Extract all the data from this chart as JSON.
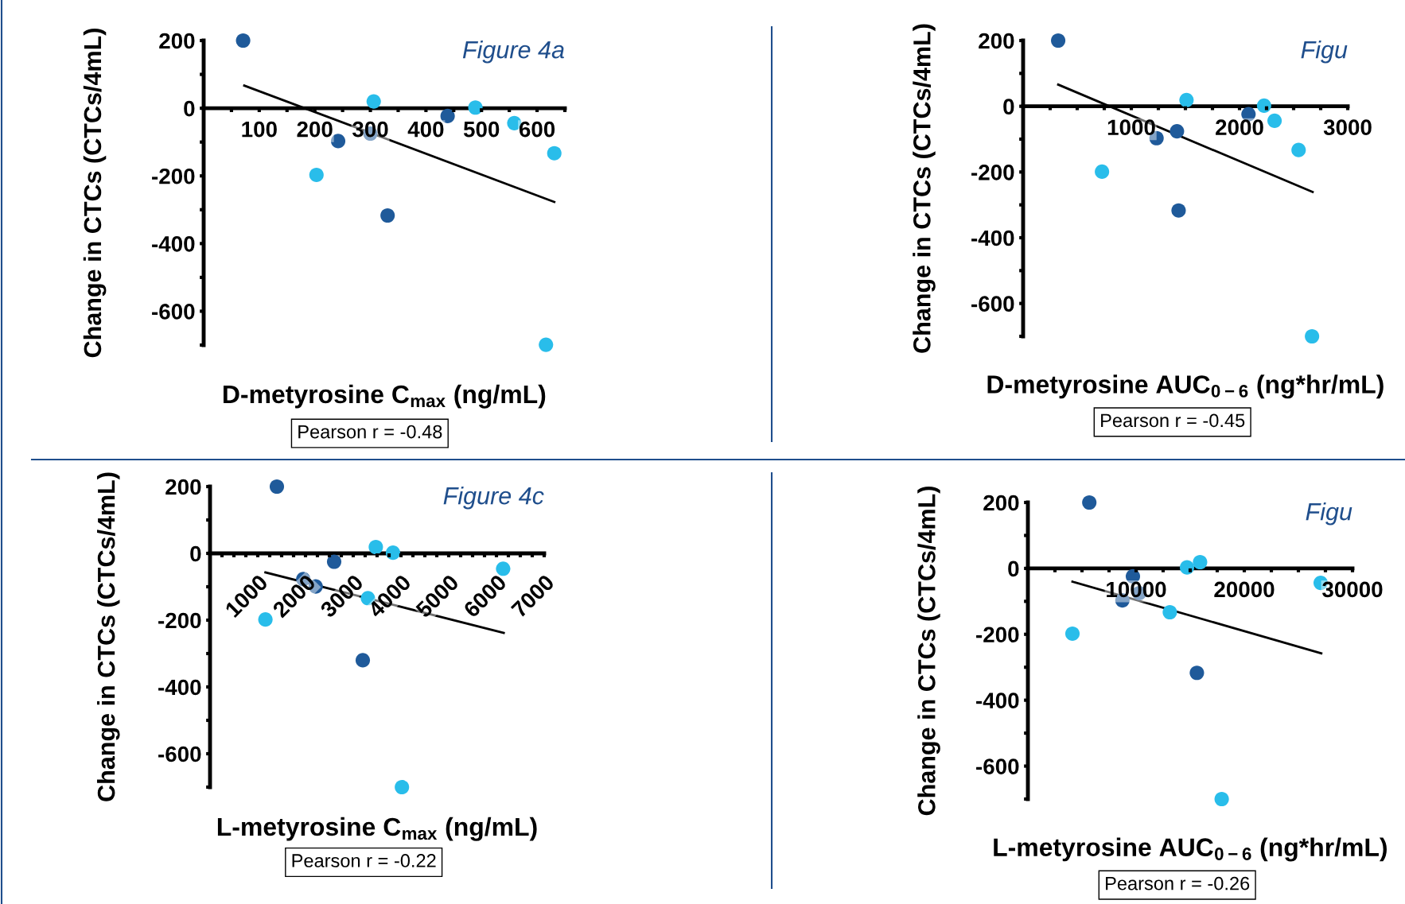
{
  "chart_data": [
    {
      "type": "scatter",
      "title": "Figure 4a",
      "xlabel": "D-metyrosine C$_{max}$ (ng/mL)",
      "ylabel": "Change in CTCs (CTCs/4mL)",
      "annotations": [
        "Pearson r = -0.48"
      ],
      "marker": "circle",
      "grid": false,
      "xlim": [
        0,
        650
      ],
      "ylim": [
        -700,
        200
      ],
      "xticks": [
        {
          "value": 50,
          "label": null
        },
        100,
        {
          "value": 150,
          "label": null
        },
        200,
        {
          "value": 250,
          "label": null
        },
        300,
        {
          "value": 350,
          "label": null
        },
        400,
        {
          "value": 450,
          "label": null
        },
        500,
        {
          "value": 550,
          "label": null
        },
        600,
        {
          "value": 650,
          "label": null
        }
      ],
      "yticks": [
        {
          "value": -700,
          "label": null
        },
        -600,
        {
          "value": -500,
          "label": null
        },
        -400,
        {
          "value": -300,
          "label": null
        },
        -200,
        {
          "value": -100,
          "label": null
        },
        0,
        {
          "value": 100,
          "label": null
        },
        200
      ],
      "series": [
        {
          "color": "#1f5a9a",
          "x": [
            71,
            242,
            300,
            331,
            439
          ],
          "values": [
            200,
            -97,
            -75,
            -317,
            -23
          ]
        },
        {
          "color": "#29bdea",
          "x": [
            203,
            306,
            489,
            559,
            631,
            616
          ],
          "values": [
            -197,
            20,
            2,
            -44,
            -133,
            -699
          ]
        },
        {
          "type": "line",
          "color": "#000000",
          "marker": "none",
          "x": [
            73,
            631
          ],
          "values": [
            67,
            -277
          ]
        }
      ]
    },
    {
      "type": "scatter",
      "title": "Figu",
      "xlabel": "D-metyrosine AUC$_{0−6}$ (ng*hr/mL)",
      "ylabel": "Change in CTCs (CTCs/4mL)",
      "annotations": [
        "Pearson r = -0.45"
      ],
      "marker": "circle",
      "grid": false,
      "xlim": [
        0,
        3000
      ],
      "ylim": [
        -700,
        200
      ],
      "xticks": [
        {
          "value": 250,
          "label": null
        },
        {
          "value": 500,
          "label": null
        },
        {
          "value": 750,
          "label": null
        },
        1000,
        {
          "value": 1250,
          "label": null
        },
        {
          "value": 1500,
          "label": null
        },
        {
          "value": 1750,
          "label": null
        },
        2000,
        {
          "value": 2250,
          "label": null
        },
        {
          "value": 2500,
          "label": null
        },
        {
          "value": 2750,
          "label": null
        },
        3000
      ],
      "yticks": [
        {
          "value": -700,
          "label": null
        },
        -600,
        {
          "value": -500,
          "label": null
        },
        -400,
        {
          "value": -300,
          "label": null
        },
        -200,
        {
          "value": -100,
          "label": null
        },
        0,
        {
          "value": 100,
          "label": null
        },
        200
      ],
      "series": [
        {
          "color": "#1f5a9a",
          "x": [
            324,
            1233,
            1422,
            1437,
            2083
          ],
          "values": [
            200,
            -97,
            -76,
            -317,
            -24
          ]
        },
        {
          "color": "#29bdea",
          "x": [
            729,
            1510,
            2227,
            2324,
            2546,
            2670
          ],
          "values": [
            -199,
            19,
            2,
            -44,
            -133,
            -700
          ]
        },
        {
          "type": "line",
          "color": "#000000",
          "marker": "none",
          "x": [
            324,
            2676
          ],
          "values": [
            66,
            -261
          ]
        }
      ]
    },
    {
      "type": "scatter",
      "title": "Figure 4c",
      "xlabel": "L-metyrosine C$_{max}$ (ng/mL)",
      "ylabel": "Change in CTCs (CTCs/4mL)",
      "annotations": [
        "Pearson r = -0.22"
      ],
      "marker": "circle",
      "grid": false,
      "xlim": [
        0,
        7000
      ],
      "ylim": [
        -700,
        200
      ],
      "xticks": [
        {
          "value": 250,
          "label": null
        },
        {
          "value": 500,
          "label": null
        },
        {
          "value": 750,
          "label": null
        },
        1000,
        {
          "value": 1250,
          "label": null
        },
        {
          "value": 1500,
          "label": null
        },
        {
          "value": 1750,
          "label": null
        },
        2000,
        {
          "value": 2250,
          "label": null
        },
        {
          "value": 2500,
          "label": null
        },
        {
          "value": 2750,
          "label": null
        },
        3000,
        {
          "value": 3250,
          "label": null
        },
        {
          "value": 3500,
          "label": null
        },
        {
          "value": 3750,
          "label": null
        },
        4000,
        {
          "value": 4250,
          "label": null
        },
        {
          "value": 4500,
          "label": null
        },
        {
          "value": 4750,
          "label": null
        },
        5000,
        {
          "value": 5250,
          "label": null
        },
        {
          "value": 5500,
          "label": null
        },
        {
          "value": 5750,
          "label": null
        },
        6000,
        {
          "value": 6250,
          "label": null
        },
        {
          "value": 6500,
          "label": null
        },
        {
          "value": 6750,
          "label": null
        },
        7000
      ],
      "yticks": [
        {
          "value": -700,
          "label": null
        },
        -600,
        {
          "value": -500,
          "label": null
        },
        -400,
        {
          "value": -300,
          "label": null
        },
        -200,
        {
          "value": -100,
          "label": null
        },
        0,
        {
          "value": 100,
          "label": null
        },
        200
      ],
      "series": [
        {
          "color": "#1f5a9a",
          "x": [
            1400,
            1953,
            2213,
            2600,
            3200
          ],
          "values": [
            200,
            -77,
            -99,
            -25,
            -320
          ]
        },
        {
          "color": "#29bdea",
          "x": [
            1160,
            3307,
            3473,
            3833,
            4020,
            6140
          ],
          "values": [
            -198,
            -134,
            19,
            2,
            -700,
            -46
          ]
        },
        {
          "type": "line",
          "color": "#000000",
          "marker": "none",
          "x": [
            1160,
            6153
          ],
          "values": [
            -57,
            -238
          ]
        }
      ]
    },
    {
      "type": "scatter",
      "title": "Figu",
      "xlabel": "L-metyrosine AUC$_{0−6}$ (ng*hr/mL)",
      "ylabel": "Change in CTCs (CTCs/4mL)",
      "annotations": [
        "Pearson r = -0.26"
      ],
      "marker": "circle",
      "grid": false,
      "xlim": [
        0,
        30000
      ],
      "ylim": [
        -700,
        200
      ],
      "xticks": [
        {
          "value": 2500,
          "label": null
        },
        {
          "value": 5000,
          "label": null
        },
        {
          "value": 7500,
          "label": null
        },
        10000,
        {
          "value": 12500,
          "label": null
        },
        {
          "value": 15000,
          "label": null
        },
        {
          "value": 17500,
          "label": null
        },
        20000,
        {
          "value": 22500,
          "label": null
        },
        {
          "value": 25000,
          "label": null
        },
        {
          "value": 27500,
          "label": null
        },
        30000
      ],
      "yticks": [
        {
          "value": -700,
          "label": null
        },
        -600,
        {
          "value": -500,
          "label": null
        },
        -400,
        {
          "value": -300,
          "label": null
        },
        -200,
        {
          "value": -100,
          "label": null
        },
        0,
        {
          "value": 100,
          "label": null
        },
        200
      ],
      "series": [
        {
          "color": "#1f5a9a",
          "x": [
            5676,
            9706,
            8735,
            10294,
            15618
          ],
          "values": [
            200,
            -24,
            -97,
            -75,
            -317
          ]
        },
        {
          "color": "#29bdea",
          "x": [
            4118,
            13118,
            14706,
            15912,
            17912,
            27059
          ],
          "values": [
            -198,
            -133,
            3,
            19,
            -700,
            -44
          ]
        },
        {
          "type": "line",
          "color": "#000000",
          "marker": "none",
          "x": [
            4118,
            27118
          ],
          "values": [
            -40,
            -258
          ]
        }
      ]
    }
  ]
}
